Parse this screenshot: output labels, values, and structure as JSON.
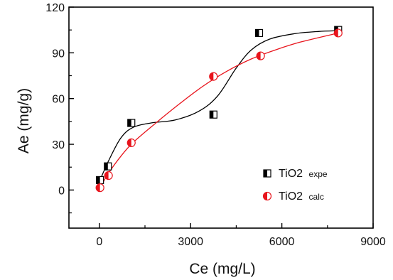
{
  "chart_data": {
    "type": "scatter",
    "xlabel": "Ce (mg/L)",
    "ylabel": "Ae (mg/g)",
    "xlim": [
      -1000,
      9000
    ],
    "ylim": [
      -25,
      120
    ],
    "x_ticks": [
      0,
      3000,
      6000,
      9000
    ],
    "y_ticks": [
      0,
      30,
      60,
      90,
      120
    ],
    "x_tick_labels": [
      "0",
      "3000",
      "6000",
      "9000"
    ],
    "y_tick_labels": [
      "0",
      "30",
      "60",
      "90",
      "120"
    ],
    "legend_position": "bottom-right",
    "series": [
      {
        "name_main": "TiO2",
        "name_suffix": "expe",
        "marker": "half-filled-square",
        "color": "#000000",
        "points": [
          {
            "x": 20,
            "y": 6.5
          },
          {
            "x": 280,
            "y": 15.5
          },
          {
            "x": 1050,
            "y": 44
          },
          {
            "x": 3750,
            "y": 49.5
          },
          {
            "x": 5250,
            "y": 103
          },
          {
            "x": 7850,
            "y": 105
          }
        ],
        "fit": [
          {
            "x": 20,
            "y": 6.5
          },
          {
            "x": 300,
            "y": 19
          },
          {
            "x": 700,
            "y": 34
          },
          {
            "x": 1100,
            "y": 41
          },
          {
            "x": 1700,
            "y": 44
          },
          {
            "x": 2500,
            "y": 46
          },
          {
            "x": 3300,
            "y": 52
          },
          {
            "x": 3900,
            "y": 62
          },
          {
            "x": 4500,
            "y": 80
          },
          {
            "x": 5000,
            "y": 92
          },
          {
            "x": 5600,
            "y": 99
          },
          {
            "x": 6400,
            "y": 102.5
          },
          {
            "x": 7200,
            "y": 104
          },
          {
            "x": 7850,
            "y": 104.5
          }
        ]
      },
      {
        "name_main": "TiO2",
        "name_suffix": "calc",
        "marker": "half-filled-circle",
        "color": "#e8141c",
        "points": [
          {
            "x": 20,
            "y": 1.5
          },
          {
            "x": 300,
            "y": 9.5
          },
          {
            "x": 1050,
            "y": 31
          },
          {
            "x": 3750,
            "y": 74.5
          },
          {
            "x": 5300,
            "y": 88
          },
          {
            "x": 7850,
            "y": 103
          }
        ],
        "fit": [
          {
            "x": 20,
            "y": 1.5
          },
          {
            "x": 300,
            "y": 11
          },
          {
            "x": 700,
            "y": 22
          },
          {
            "x": 1100,
            "y": 31
          },
          {
            "x": 1800,
            "y": 43
          },
          {
            "x": 2600,
            "y": 56
          },
          {
            "x": 3400,
            "y": 68
          },
          {
            "x": 4200,
            "y": 78
          },
          {
            "x": 5000,
            "y": 86
          },
          {
            "x": 5800,
            "y": 92
          },
          {
            "x": 6600,
            "y": 97
          },
          {
            "x": 7850,
            "y": 103
          }
        ]
      }
    ]
  }
}
